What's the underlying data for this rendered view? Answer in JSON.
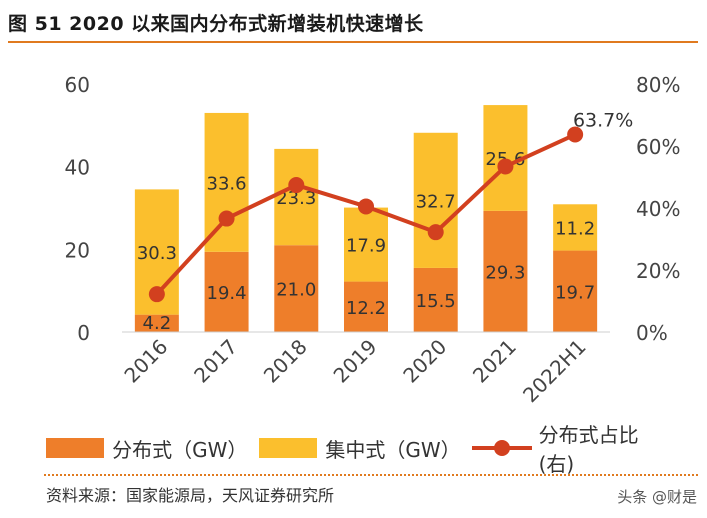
{
  "figure": {
    "title": "图 51 2020 以来国内分布式新增装机快速增长",
    "source": "资料来源：国家能源局，天风证券研究所",
    "watermark": "头条 @财是"
  },
  "colors": {
    "distributed": "#ee7e2a",
    "centralized": "#fbbf2d",
    "ratio_line": "#d2401f",
    "accent": "#e07a1f"
  },
  "chart_data": {
    "type": "bar",
    "stacked": true,
    "categories": [
      "2016",
      "2017",
      "2018",
      "2019",
      "2020",
      "2021",
      "2022H1"
    ],
    "series": [
      {
        "name": "分布式（GW）",
        "type": "bar",
        "axis": "left",
        "values": [
          4.2,
          19.4,
          21.0,
          12.2,
          15.5,
          29.3,
          19.7
        ]
      },
      {
        "name": "集中式（GW）",
        "type": "bar",
        "axis": "left",
        "values": [
          30.3,
          33.6,
          23.3,
          17.9,
          32.7,
          25.6,
          11.2
        ]
      },
      {
        "name": "分布式占比(右)",
        "type": "line",
        "axis": "right",
        "values": [
          0.122,
          0.366,
          0.474,
          0.405,
          0.322,
          0.534,
          0.637
        ]
      }
    ],
    "value_labels": {
      "distributed": [
        "4.2",
        "19.4",
        "21.0",
        "12.2",
        "15.5",
        "29.3",
        "19.7"
      ],
      "centralized": [
        "30.3",
        "33.6",
        "23.3",
        "17.9",
        "32.7",
        "25.6",
        "11.2"
      ],
      "ratio_last": "63.7%"
    },
    "y_left": {
      "ylim": [
        0,
        60
      ],
      "ticks": [
        "0",
        "20",
        "40",
        "60"
      ]
    },
    "y_right": {
      "ylim": [
        0,
        0.8
      ],
      "ticks": [
        "0%",
        "20%",
        "40%",
        "60%",
        "80%"
      ]
    },
    "legend_position": "bottom",
    "legend": [
      "分布式（GW）",
      "集中式（GW）",
      "分布式占比(右)"
    ]
  }
}
